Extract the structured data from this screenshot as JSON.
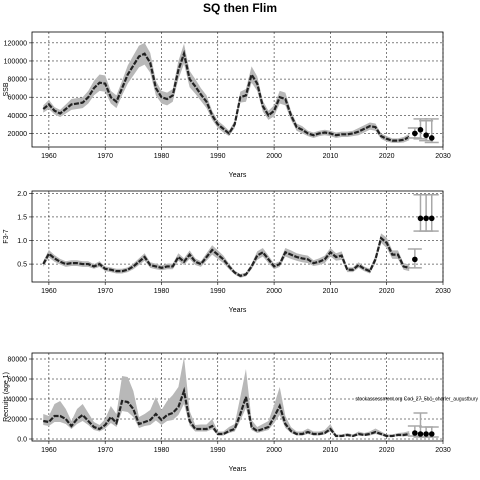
{
  "figure_title": "SQ then Flim",
  "chart_data": [
    {
      "type": "line",
      "name": "ssb",
      "ylabel": "SSB",
      "xlabel": "Years",
      "xlim": [
        1957,
        2030
      ],
      "ylim": [
        5000,
        132000
      ],
      "xticks": [
        1960,
        1970,
        1980,
        1990,
        2000,
        2010,
        2020,
        2030
      ],
      "yticks": [
        20000,
        40000,
        60000,
        80000,
        100000,
        120000
      ],
      "grid": true,
      "annotation": "",
      "x": [
        1959,
        1960,
        1961,
        1962,
        1963,
        1964,
        1965,
        1966,
        1967,
        1968,
        1969,
        1970,
        1971,
        1972,
        1973,
        1974,
        1975,
        1976,
        1977,
        1978,
        1979,
        1980,
        1981,
        1982,
        1983,
        1984,
        1985,
        1986,
        1987,
        1988,
        1989,
        1990,
        1991,
        1992,
        1993,
        1994,
        1995,
        1996,
        1997,
        1998,
        1999,
        2000,
        2001,
        2002,
        2003,
        2004,
        2005,
        2006,
        2007,
        2008,
        2009,
        2010,
        2011,
        2012,
        2013,
        2014,
        2015,
        2016,
        2017,
        2018,
        2019,
        2020,
        2021,
        2022,
        2023,
        2024
      ],
      "values": [
        47000,
        52000,
        45000,
        42000,
        47000,
        52000,
        53000,
        54000,
        60000,
        70000,
        76000,
        75000,
        60000,
        55000,
        70000,
        85000,
        95000,
        105000,
        108000,
        98000,
        70000,
        60000,
        58000,
        62000,
        90000,
        108000,
        80000,
        72000,
        63000,
        55000,
        40000,
        30000,
        25000,
        20000,
        30000,
        60000,
        62000,
        85000,
        75000,
        50000,
        40000,
        45000,
        60000,
        58000,
        40000,
        27000,
        24000,
        20000,
        18000,
        20000,
        21000,
        20000,
        18000,
        19000,
        19000,
        20000,
        22000,
        25000,
        28000,
        27000,
        17000,
        14000,
        12000,
        12000,
        13000,
        16000
      ],
      "lower": [
        43000,
        47000,
        41000,
        38000,
        42000,
        46000,
        47000,
        48000,
        53000,
        62000,
        67000,
        66000,
        53000,
        48000,
        62000,
        75000,
        84000,
        93000,
        96000,
        87000,
        62000,
        53000,
        51000,
        55000,
        80000,
        97000,
        71000,
        64000,
        56000,
        48000,
        35000,
        26000,
        21000,
        17000,
        26000,
        54000,
        55000,
        76000,
        67000,
        44000,
        35000,
        39000,
        53000,
        51000,
        35000,
        23000,
        20000,
        17000,
        15000,
        17000,
        18000,
        17000,
        15000,
        16000,
        16000,
        17000,
        18000,
        21000,
        24000,
        23000,
        14000,
        11000,
        9500,
        9500,
        10000,
        12500
      ],
      "upper": [
        51000,
        57000,
        49000,
        46000,
        52000,
        58000,
        59000,
        60000,
        67000,
        78000,
        85000,
        84000,
        67000,
        62000,
        78000,
        95000,
        106000,
        117000,
        120000,
        109000,
        78000,
        67000,
        65000,
        69000,
        100000,
        119000,
        89000,
        80000,
        70000,
        62000,
        45000,
        34000,
        29000,
        23000,
        34000,
        66000,
        69000,
        94000,
        83000,
        56000,
        45000,
        51000,
        67000,
        65000,
        45000,
        31000,
        28000,
        23000,
        21000,
        23000,
        24000,
        23000,
        21000,
        22000,
        22000,
        23000,
        26000,
        29000,
        32000,
        31000,
        20000,
        17000,
        14500,
        14500,
        16000,
        19500
      ],
      "projection": {
        "x": [
          2025,
          2026,
          2027,
          2028
        ],
        "values": [
          20000,
          24000,
          18000,
          15000
        ],
        "lower": [
          15000,
          14000,
          12000,
          10000
        ],
        "upper": [
          26000,
          36000,
          34000,
          36000
        ]
      }
    },
    {
      "type": "line",
      "name": "fbar",
      "ylabel": "F3-7",
      "xlabel": "Years",
      "xlim": [
        1957,
        2030
      ],
      "ylim": [
        0.12,
        2.05
      ],
      "xticks": [
        1960,
        1970,
        1980,
        1990,
        2000,
        2010,
        2020,
        2030
      ],
      "yticks": [
        0.5,
        1.0,
        1.5,
        2.0
      ],
      "grid": true,
      "annotation": "",
      "x": [
        1959,
        1960,
        1961,
        1962,
        1963,
        1964,
        1965,
        1966,
        1967,
        1968,
        1969,
        1970,
        1971,
        1972,
        1973,
        1974,
        1975,
        1976,
        1977,
        1978,
        1979,
        1980,
        1981,
        1982,
        1983,
        1984,
        1985,
        1986,
        1987,
        1988,
        1989,
        1990,
        1991,
        1992,
        1993,
        1994,
        1995,
        1996,
        1997,
        1998,
        1999,
        2000,
        2001,
        2002,
        2003,
        2004,
        2005,
        2006,
        2007,
        2008,
        2009,
        2010,
        2011,
        2012,
        2013,
        2014,
        2015,
        2016,
        2017,
        2018,
        2019,
        2020,
        2021,
        2022,
        2023,
        2024
      ],
      "values": [
        0.5,
        0.72,
        0.62,
        0.55,
        0.5,
        0.52,
        0.52,
        0.5,
        0.5,
        0.45,
        0.5,
        0.4,
        0.38,
        0.35,
        0.35,
        0.38,
        0.45,
        0.55,
        0.65,
        0.48,
        0.45,
        0.42,
        0.45,
        0.45,
        0.65,
        0.55,
        0.7,
        0.55,
        0.5,
        0.65,
        0.8,
        0.7,
        0.6,
        0.45,
        0.32,
        0.25,
        0.28,
        0.45,
        0.68,
        0.75,
        0.6,
        0.45,
        0.5,
        0.75,
        0.7,
        0.65,
        0.62,
        0.6,
        0.52,
        0.55,
        0.6,
        0.75,
        0.65,
        0.68,
        0.38,
        0.38,
        0.48,
        0.4,
        0.35,
        0.6,
        1.05,
        0.95,
        0.7,
        0.7,
        0.45,
        0.42
      ],
      "lower": [
        0.44,
        0.64,
        0.55,
        0.49,
        0.44,
        0.46,
        0.46,
        0.44,
        0.44,
        0.4,
        0.44,
        0.35,
        0.33,
        0.3,
        0.3,
        0.33,
        0.39,
        0.48,
        0.57,
        0.42,
        0.39,
        0.37,
        0.39,
        0.39,
        0.57,
        0.48,
        0.61,
        0.48,
        0.44,
        0.57,
        0.7,
        0.61,
        0.52,
        0.39,
        0.28,
        0.21,
        0.24,
        0.39,
        0.59,
        0.66,
        0.52,
        0.39,
        0.44,
        0.66,
        0.61,
        0.57,
        0.54,
        0.52,
        0.46,
        0.48,
        0.52,
        0.66,
        0.57,
        0.59,
        0.33,
        0.33,
        0.42,
        0.35,
        0.3,
        0.52,
        0.95,
        0.84,
        0.61,
        0.61,
        0.38,
        0.35
      ],
      "upper": [
        0.56,
        0.8,
        0.69,
        0.61,
        0.56,
        0.58,
        0.58,
        0.56,
        0.56,
        0.5,
        0.56,
        0.45,
        0.43,
        0.4,
        0.4,
        0.43,
        0.51,
        0.62,
        0.73,
        0.54,
        0.51,
        0.47,
        0.51,
        0.51,
        0.73,
        0.62,
        0.79,
        0.62,
        0.56,
        0.73,
        0.9,
        0.79,
        0.68,
        0.51,
        0.36,
        0.29,
        0.32,
        0.51,
        0.77,
        0.84,
        0.68,
        0.51,
        0.56,
        0.84,
        0.79,
        0.73,
        0.7,
        0.68,
        0.58,
        0.62,
        0.68,
        0.84,
        0.73,
        0.77,
        0.43,
        0.43,
        0.54,
        0.45,
        0.4,
        0.68,
        1.15,
        1.06,
        0.79,
        0.79,
        0.52,
        0.49
      ],
      "projection": {
        "x": [
          2025,
          2026,
          2027,
          2028
        ],
        "values": [
          0.6,
          1.47,
          1.47,
          1.47
        ],
        "lower": [
          0.42,
          1.2,
          1.2,
          1.2
        ],
        "upper": [
          0.82,
          1.97,
          1.97,
          1.97
        ]
      }
    },
    {
      "type": "line",
      "name": "recruitment",
      "ylabel": "Recruits (age 1)",
      "xlabel": "Years",
      "xlim": [
        1957,
        2030
      ],
      "ylim": [
        -2000,
        86000
      ],
      "xticks": [
        1960,
        1970,
        1980,
        1990,
        2000,
        2010,
        2020,
        2030
      ],
      "yticks": [
        0,
        20000,
        40000,
        60000,
        80000
      ],
      "grid": true,
      "annotation": "stockassessment.org Cod_27_5b1_charler_augustbury",
      "x": [
        1959,
        1960,
        1961,
        1962,
        1963,
        1964,
        1965,
        1966,
        1967,
        1968,
        1969,
        1970,
        1971,
        1972,
        1973,
        1974,
        1975,
        1976,
        1977,
        1978,
        1979,
        1980,
        1981,
        1982,
        1983,
        1984,
        1985,
        1986,
        1987,
        1988,
        1989,
        1990,
        1991,
        1992,
        1993,
        1994,
        1995,
        1996,
        1997,
        1998,
        1999,
        2000,
        2001,
        2002,
        2003,
        2004,
        2005,
        2006,
        2007,
        2008,
        2009,
        2010,
        2011,
        2012,
        2013,
        2014,
        2015,
        2016,
        2017,
        2018,
        2019,
        2020,
        2021,
        2022,
        2023,
        2024
      ],
      "values": [
        18000,
        17000,
        23000,
        23000,
        20000,
        13000,
        20000,
        24000,
        18000,
        12000,
        10000,
        14000,
        22000,
        16000,
        38000,
        37000,
        30000,
        15000,
        17000,
        19000,
        25000,
        19000,
        24000,
        26000,
        32000,
        48000,
        18000,
        10000,
        10000,
        10000,
        13000,
        5000,
        5000,
        8000,
        10000,
        25000,
        42000,
        12000,
        8000,
        10000,
        12000,
        22000,
        33000,
        15000,
        8000,
        5000,
        5000,
        7000,
        5000,
        5000,
        6000,
        10000,
        3000,
        3000,
        4000,
        3000,
        5000,
        4000,
        5000,
        7000,
        5000,
        3000,
        3000,
        4000,
        4000,
        5000
      ],
      "lower": [
        14000,
        13000,
        17000,
        17000,
        15000,
        10000,
        15000,
        18000,
        14000,
        9000,
        7500,
        10500,
        16000,
        12000,
        28000,
        27000,
        22000,
        11000,
        13000,
        14000,
        18500,
        14000,
        18000,
        19000,
        24000,
        35000,
        13500,
        7500,
        7500,
        7500,
        9800,
        3500,
        3500,
        6000,
        7500,
        18500,
        31000,
        9000,
        6000,
        7500,
        9000,
        16000,
        24000,
        11000,
        6000,
        3500,
        3500,
        5000,
        3500,
        3500,
        4500,
        7500,
        2000,
        2000,
        3000,
        2000,
        3500,
        3000,
        3500,
        5000,
        3500,
        2000,
        2000,
        3000,
        2500,
        3000
      ],
      "upper": [
        25000,
        23000,
        35000,
        38000,
        30000,
        18000,
        30000,
        35000,
        26000,
        17000,
        14000,
        20000,
        33000,
        25000,
        63000,
        62000,
        48000,
        22000,
        25000,
        29000,
        42000,
        29000,
        38000,
        44000,
        52000,
        82000,
        28000,
        14000,
        14500,
        14500,
        20000,
        7500,
        7500,
        12000,
        15000,
        42000,
        70000,
        19000,
        12000,
        15000,
        18000,
        34000,
        52000,
        23000,
        12000,
        7500,
        7500,
        10500,
        7500,
        7500,
        9000,
        15000,
        4500,
        4500,
        6000,
        4500,
        7500,
        6000,
        7500,
        10500,
        7500,
        4500,
        4500,
        6000,
        6500,
        8000
      ],
      "projection": {
        "x": [
          2025,
          2026,
          2027,
          2028
        ],
        "values": [
          6000,
          5000,
          5000,
          5000
        ],
        "lower": [
          3000,
          2000,
          2000,
          2000
        ],
        "upper": [
          13000,
          26000,
          12000,
          12000
        ]
      }
    }
  ]
}
